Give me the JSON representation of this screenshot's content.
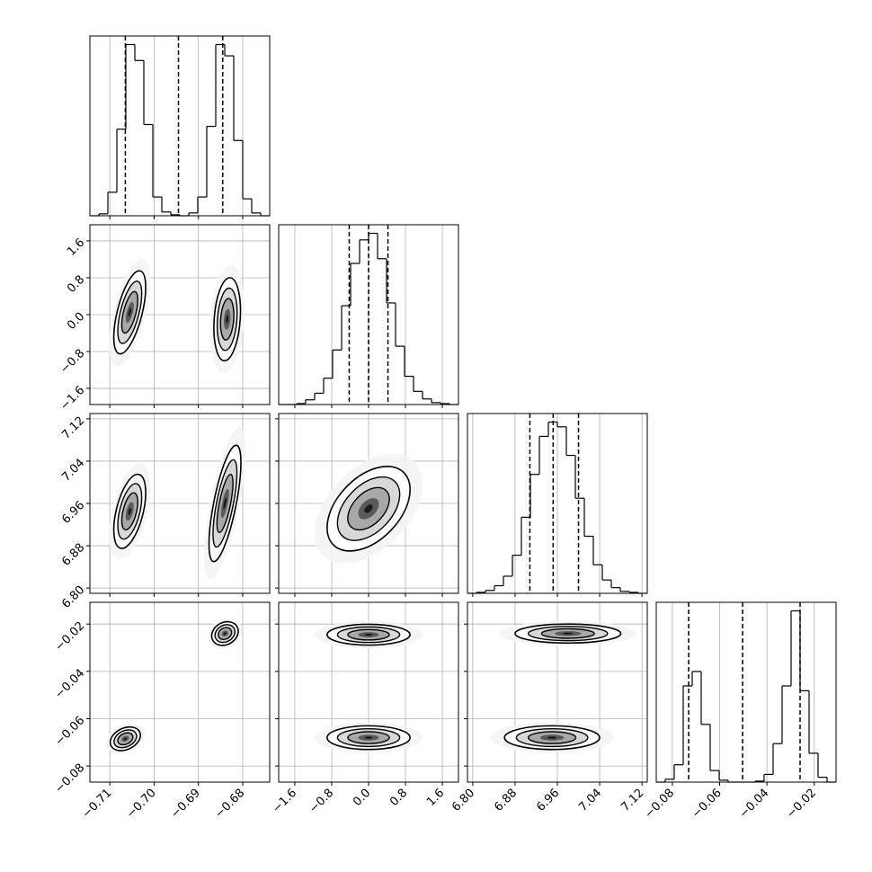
{
  "chart_data": {
    "type": "corner",
    "params": [
      {
        "lim": [
          -0.7145,
          -0.6739
        ],
        "ticks": [
          {
            "value": -0.71,
            "label": "−0.71"
          },
          {
            "value": -0.7,
            "label": "−0.70"
          },
          {
            "value": -0.69,
            "label": "−0.69"
          },
          {
            "value": -0.68,
            "label": "−0.68"
          }
        ]
      },
      {
        "lim": [
          -1.95,
          1.95
        ],
        "ticks": [
          {
            "value": -1.6,
            "label": "−1.6"
          },
          {
            "value": -0.8,
            "label": "−0.8"
          },
          {
            "value": 0,
            "label": "0.0"
          },
          0.8,
          1.6
        ]
      },
      {
        "lim": [
          6.79,
          7.13
        ],
        "ticks": [
          {
            "value": 6.8,
            "label": "6.80"
          },
          6.88,
          6.96,
          7.04,
          7.12
        ]
      },
      {
        "lim": [
          -0.0868,
          -0.0108
        ],
        "ticks": [
          {
            "value": -0.08,
            "label": "−0.08"
          },
          {
            "value": -0.06,
            "label": "−0.06"
          },
          {
            "value": -0.04,
            "label": "−0.04"
          },
          {
            "value": -0.02,
            "label": "−0.02"
          }
        ]
      }
    ],
    "histograms": [
      {
        "bins": [
          -0.7145,
          -0.71247,
          -0.71044,
          -0.70841,
          -0.70638,
          -0.70435,
          -0.70232,
          -0.70029,
          -0.69826,
          -0.69623,
          -0.6942,
          -0.69217,
          -0.69014,
          -0.68811,
          -0.68608,
          -0.68405,
          -0.68202,
          -0.67999,
          -0.67796,
          -0.67593,
          -0.6739
        ],
        "counts": [
          0,
          2,
          25,
          92,
          182,
          165,
          97,
          20,
          4,
          1,
          0,
          3,
          20,
          95,
          182,
          170,
          80,
          18,
          3,
          0
        ],
        "quantiles": [
          -0.7065,
          -0.6945,
          -0.6845
        ]
      },
      {
        "bins": [
          -1.95,
          -1.755,
          -1.56,
          -1.365,
          -1.17,
          -0.975,
          -0.78,
          -0.585,
          -0.39,
          -0.195,
          0,
          0.195,
          0.39,
          0.585,
          0.78,
          0.975,
          1.17,
          1.365,
          1.56,
          1.755,
          1.95
        ],
        "counts": [
          0,
          0,
          1,
          5,
          12,
          28,
          58,
          105,
          150,
          175,
          182,
          155,
          108,
          62,
          30,
          14,
          6,
          2,
          1,
          0
        ],
        "quantiles": [
          -0.42,
          0,
          0.42
        ]
      },
      {
        "bins": [
          6.79,
          6.807,
          6.824,
          6.841,
          6.858,
          6.875,
          6.892,
          6.909,
          6.926,
          6.943,
          6.96,
          6.977,
          6.994,
          7.011,
          7.028,
          7.045,
          7.062,
          7.079,
          7.096,
          7.113,
          7.13
        ],
        "counts": [
          0,
          1,
          3,
          8,
          18,
          40,
          80,
          125,
          165,
          180,
          175,
          145,
          100,
          60,
          30,
          14,
          6,
          2,
          1,
          0
        ],
        "quantiles": [
          6.908,
          6.952,
          7.0
        ]
      },
      {
        "bins": [
          -0.0868,
          -0.083,
          -0.0792,
          -0.0754,
          -0.0716,
          -0.0678,
          -0.064,
          -0.0602,
          -0.0564,
          -0.0526,
          -0.0488,
          -0.045,
          -0.0412,
          -0.0374,
          -0.0336,
          -0.0298,
          -0.026,
          -0.0222,
          -0.0184,
          -0.0146,
          -0.0108
        ],
        "counts": [
          0,
          3,
          18,
          100,
          115,
          60,
          12,
          2,
          0,
          0,
          0,
          1,
          8,
          40,
          100,
          178,
          95,
          30,
          5,
          0
        ],
        "quantiles": [
          -0.0731,
          -0.0503,
          -0.026
        ]
      }
    ],
    "panels": [
      {
        "clusters": [
          {
            "x": -0.7055,
            "y": 0.05,
            "sx": 0.0018,
            "sy": 0.45,
            "rho": 0.6
          },
          {
            "x": -0.6835,
            "y": -0.1,
            "sx": 0.0015,
            "sy": 0.45,
            "rho": 0.2
          }
        ]
      },
      {
        "clusters": [
          {
            "x": -0.7055,
            "y": 6.945,
            "sx": 0.0018,
            "sy": 0.035,
            "rho": 0.5
          },
          {
            "x": -0.684,
            "y": 6.96,
            "sx": 0.0018,
            "sy": 0.055,
            "rho": 0.7
          }
        ]
      },
      {
        "clusters": [
          {
            "x": 0,
            "y": 6.95,
            "sx": 0.45,
            "sy": 0.04,
            "rho": 0.45
          }
        ]
      },
      {
        "clusters": [
          {
            "x": -0.7065,
            "y": -0.0685,
            "sx": 0.0017,
            "sy": 0.0025,
            "rho": 0.3
          },
          {
            "x": -0.684,
            "y": -0.024,
            "sx": 0.0015,
            "sy": 0.0025,
            "rho": 0.2
          }
        ]
      },
      {
        "clusters": [
          {
            "x": 0,
            "y": -0.0245,
            "sx": 0.45,
            "sy": 0.0022,
            "rho": 0
          },
          {
            "x": 0,
            "y": -0.068,
            "sx": 0.45,
            "sy": 0.0025,
            "rho": 0
          }
        ]
      },
      {
        "clusters": [
          {
            "x": 6.98,
            "y": -0.024,
            "sx": 0.05,
            "sy": 0.002,
            "rho": 0
          },
          {
            "x": 6.95,
            "y": -0.068,
            "sx": 0.045,
            "sy": 0.0025,
            "rho": 0
          }
        ]
      }
    ]
  }
}
